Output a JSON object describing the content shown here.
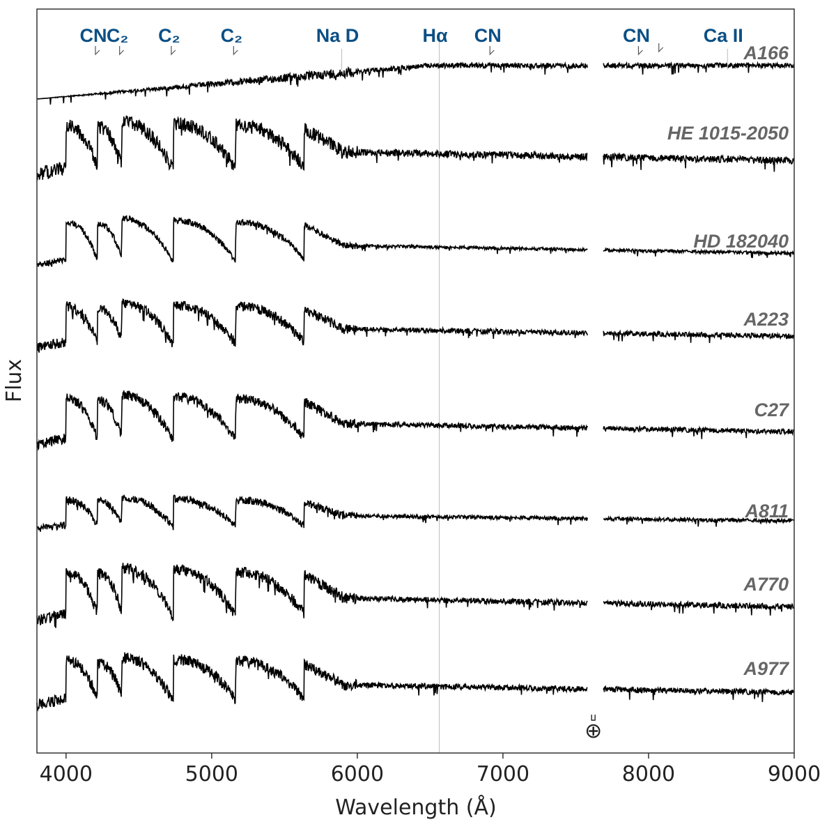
{
  "chart_data": {
    "type": "line",
    "title": "",
    "xlabel": "Wavelength (Å)",
    "ylabel": "Flux",
    "xlim": [
      3800,
      9000
    ],
    "xticks": [
      4000,
      5000,
      6000,
      7000,
      8000,
      9000
    ],
    "yticks": [],
    "grid": false,
    "legend": "none",
    "gap": [
      7580,
      7690
    ],
    "telluric_symbol": "⊕",
    "h_alpha_wavelength": 6563,
    "line_color": "#000000",
    "feature_label_color": "#0b4f85",
    "star_label_color": "#666666",
    "features": [
      {
        "label": "CN",
        "wavelength": 4216
      },
      {
        "label": "C₂",
        "wavelength": 4382
      },
      {
        "label": "C₂",
        "wavelength": 4737
      },
      {
        "label": "C₂",
        "wavelength": 5165
      },
      {
        "label": "Na D",
        "wavelength": 5893
      },
      {
        "label": "Hα",
        "wavelength": 6563
      },
      {
        "label": "CN",
        "wavelength": 6925
      },
      {
        "label": "CN",
        "wavelength": 7945
      },
      {
        "label": "Ca II",
        "wavelength": 8542
      }
    ],
    "series": [
      {
        "name": "A166",
        "type": "rising",
        "amplitude": 0.8,
        "noise": 0.8
      },
      {
        "name": "HE 1015-2050",
        "type": "carbon",
        "amplitude": 1.0,
        "noise": 1.1
      },
      {
        "name": "HD 182040",
        "type": "carbon",
        "amplitude": 0.9,
        "noise": 0.5
      },
      {
        "name": "A223",
        "type": "carbon",
        "amplitude": 0.85,
        "noise": 0.8
      },
      {
        "name": "C27",
        "type": "carbon",
        "amplitude": 0.95,
        "noise": 0.8
      },
      {
        "name": "A811",
        "type": "carbon",
        "amplitude": 0.6,
        "noise": 0.6
      },
      {
        "name": "A770",
        "type": "carbon",
        "amplitude": 1.0,
        "noise": 0.9
      },
      {
        "name": "A977",
        "type": "carbon",
        "amplitude": 0.9,
        "noise": 0.9
      }
    ]
  }
}
